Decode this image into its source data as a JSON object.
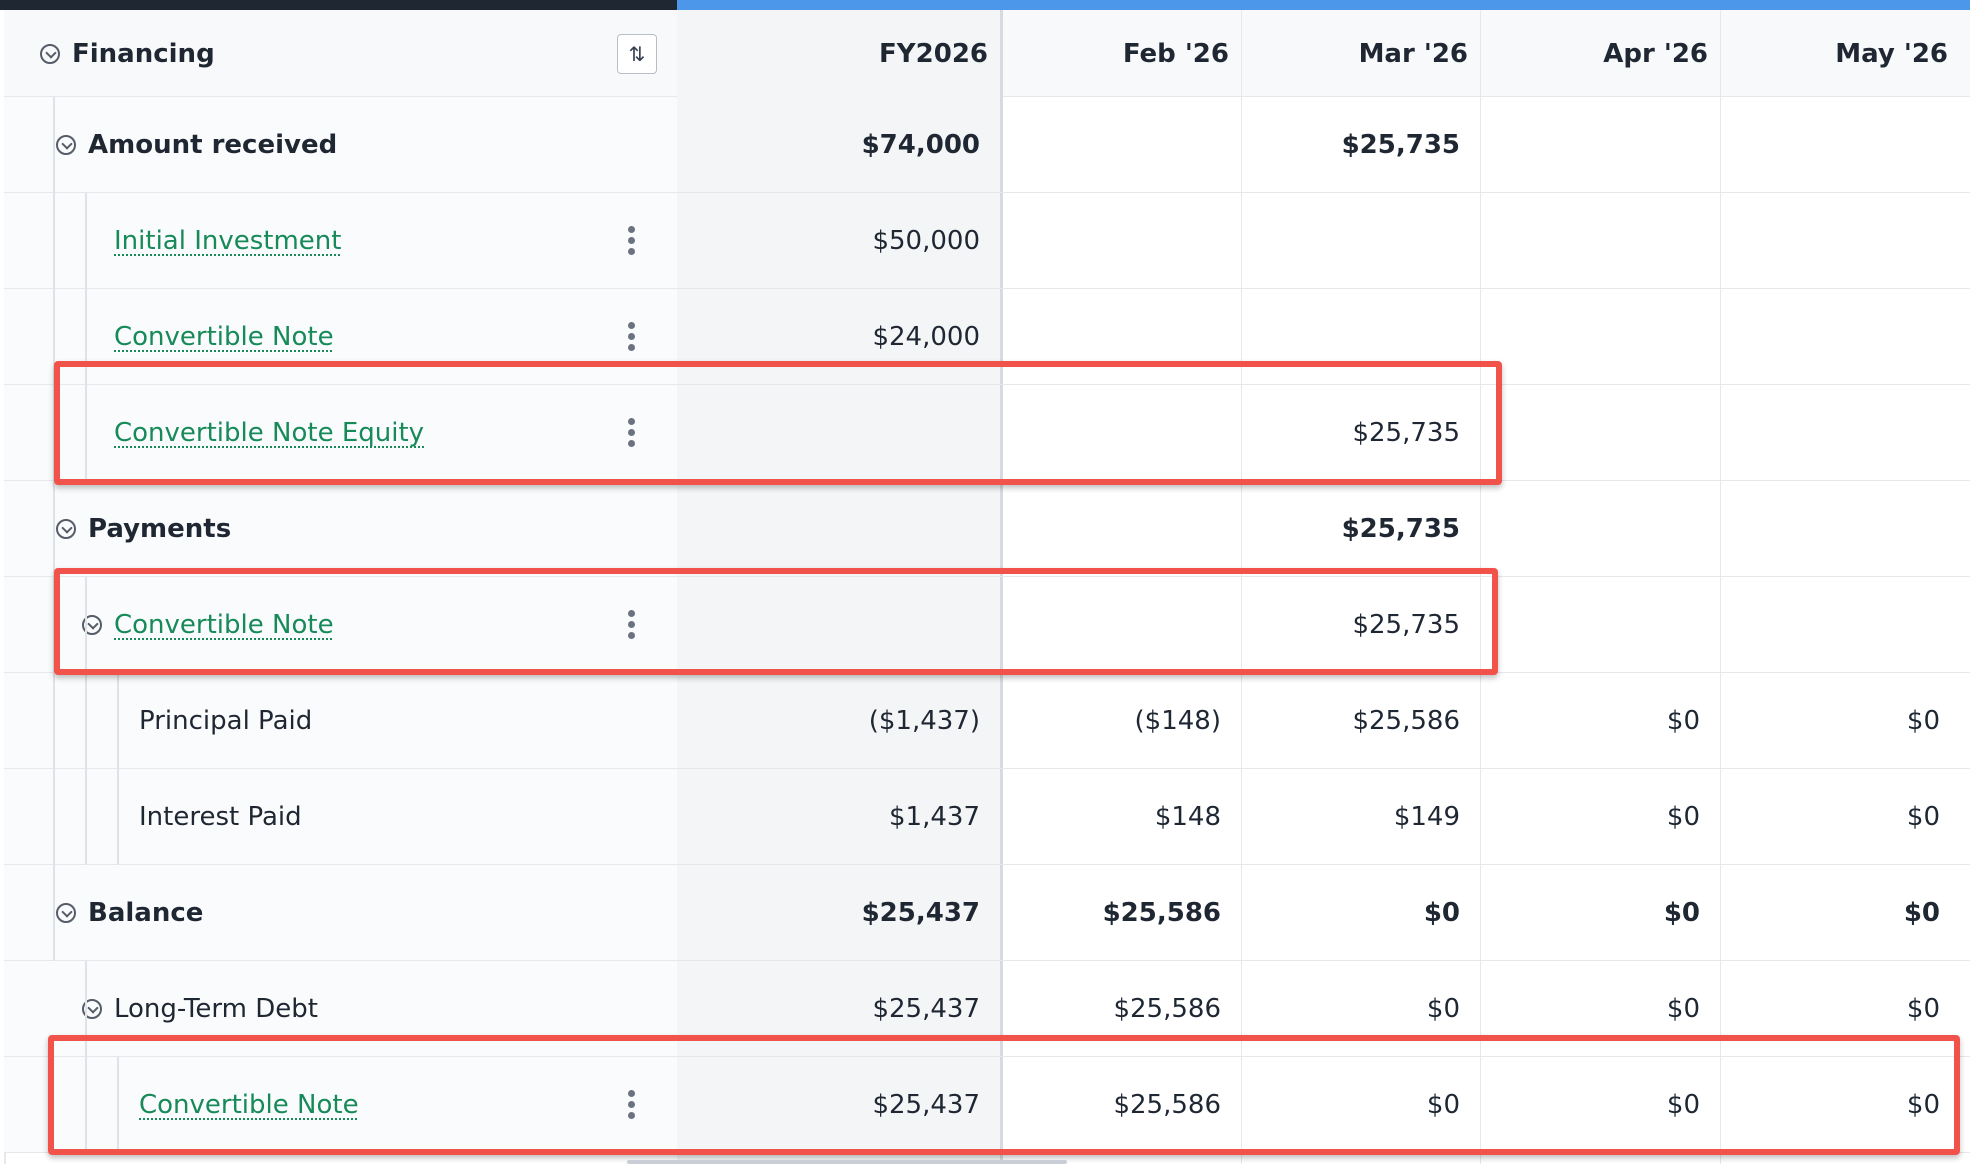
{
  "header": {
    "section_title": "Financing",
    "columns": [
      "FY2026",
      "Feb '26",
      "Mar '26",
      "Apr '26",
      "May '26"
    ]
  },
  "rows": [
    {
      "label": "Amount received",
      "style": "group",
      "values": [
        "$74,000",
        "",
        "$25,735",
        "",
        ""
      ]
    },
    {
      "label": "Initial Investment",
      "style": "link",
      "values": [
        "$50,000",
        "",
        "",
        "",
        ""
      ]
    },
    {
      "label": "Convertible Note",
      "style": "link",
      "values": [
        "$24,000",
        "",
        "",
        "",
        ""
      ]
    },
    {
      "label": "Convertible Note Equity",
      "style": "link",
      "values": [
        "",
        "",
        "$25,735",
        "",
        ""
      ]
    },
    {
      "label": "Payments",
      "style": "group",
      "values": [
        "",
        "",
        "$25,735",
        "",
        ""
      ]
    },
    {
      "label": "Convertible Note",
      "style": "link-group",
      "values": [
        "",
        "",
        "$25,735",
        "",
        ""
      ]
    },
    {
      "label": "Principal Paid",
      "style": "plain",
      "values": [
        "($1,437)",
        "($148)",
        "$25,586",
        "$0",
        "$0"
      ]
    },
    {
      "label": "Interest Paid",
      "style": "plain",
      "values": [
        "$1,437",
        "$148",
        "$149",
        "$0",
        "$0"
      ]
    },
    {
      "label": "Balance",
      "style": "group",
      "values": [
        "$25,437",
        "$25,586",
        "$0",
        "$0",
        "$0"
      ]
    },
    {
      "label": "Long-Term Debt",
      "style": "plain-group",
      "values": [
        "$25,437",
        "$25,586",
        "$0",
        "$0",
        "$0"
      ]
    },
    {
      "label": "Convertible Note",
      "style": "link",
      "values": [
        "$25,437",
        "$25,586",
        "$0",
        "$0",
        "$0"
      ]
    }
  ],
  "icons": {
    "collapse": "chevron-down-circle-icon",
    "sort": "sort-lines-icon",
    "row_menu": "kebab-menu-icon"
  },
  "colors": {
    "accent_blue": "#4c97ea",
    "link_green": "#178a5a",
    "highlight_red": "#f1534b",
    "text_dark": "#1f2733"
  }
}
